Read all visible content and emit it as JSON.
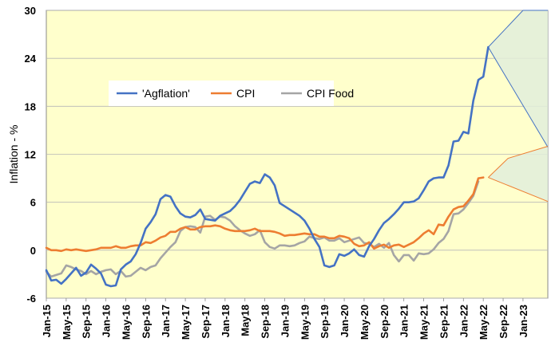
{
  "chart_data": {
    "type": "line",
    "title": "",
    "xlabel": "",
    "ylabel": "Inflation - %",
    "ylim": [
      -6,
      30
    ],
    "y_ticks": [
      "30",
      "24",
      "18",
      "12",
      "6",
      "0",
      "-6"
    ],
    "x_ticks": [
      "Jan-15",
      "May-15",
      "Sep-15",
      "Jan-16",
      "May-16",
      "Sep-16",
      "Jan-17",
      "May-17",
      "Sep-17",
      "Jan-18",
      "May18",
      "Sep-18",
      "Jan-19",
      "May-19",
      "Sep-19",
      "Jan-20",
      "May-20",
      "Sep-20",
      "Jan-21",
      "May-21",
      "Sep-21",
      "Jan-22",
      "May-22",
      "Sep-22",
      "Jan-23"
    ],
    "legend": {
      "placement": "upper-left",
      "entries": [
        "'Agflation'",
        "CPI",
        "CPI Food"
      ]
    },
    "grid": "horizontal",
    "colors": {
      "plot_bg": "#FFFFCC",
      "agflation": "#4472C4",
      "cpi": "#ED7D31",
      "cpi_food": "#A5A5A5",
      "projection_fill": "#E2EFDA"
    },
    "series": [
      {
        "name": "'Agflation'",
        "color": "#4472C4",
        "values": [
          -2.5,
          -3.8,
          -3.7,
          -4.2,
          -3.6,
          -2.9,
          -2.2,
          -3.2,
          -2.8,
          -1.8,
          -2.3,
          -2.9,
          -4.3,
          -4.5,
          -4.4,
          -2.4,
          -1.8,
          -1.4,
          -0.5,
          0.9,
          2.7,
          3.5,
          4.5,
          6.4,
          6.9,
          6.7,
          5.5,
          4.6,
          4.2,
          4.1,
          4.4,
          5.1,
          3.9,
          3.8,
          3.7,
          4.3,
          4.6,
          4.9,
          5.5,
          6.3,
          7.3,
          8.3,
          8.6,
          8.4,
          9.5,
          9.1,
          8.1,
          5.9,
          5.5,
          5.1,
          4.7,
          4.3,
          3.7,
          2.7,
          1.4,
          0.4,
          -1.9,
          -2.1,
          -1.9,
          -0.5,
          -0.7,
          -0.4,
          0.1,
          -0.6,
          -0.8,
          0.5,
          1.4,
          2.5,
          3.4,
          3.9,
          4.5,
          5.2,
          6.0,
          6.0,
          6.1,
          6.5,
          7.5,
          8.6,
          9.0,
          9.1,
          9.1,
          10.6,
          13.6,
          13.7,
          14.8,
          14.6,
          18.7,
          21.3,
          21.7,
          25.4
        ]
      },
      {
        "name": "CPI",
        "color": "#ED7D31",
        "values": [
          0.3,
          0.0,
          0.0,
          -0.1,
          0.1,
          0.0,
          0.1,
          0.0,
          -0.1,
          0.0,
          0.1,
          0.3,
          0.3,
          0.3,
          0.5,
          0.3,
          0.3,
          0.5,
          0.6,
          0.6,
          1.0,
          0.9,
          1.2,
          1.6,
          1.8,
          2.3,
          2.3,
          2.7,
          2.9,
          2.6,
          2.6,
          2.9,
          3.0,
          3.0,
          3.1,
          3.0,
          2.7,
          2.5,
          2.4,
          2.4,
          2.4,
          2.5,
          2.7,
          2.4,
          2.4,
          2.4,
          2.3,
          2.1,
          1.8,
          1.9,
          1.9,
          2.0,
          2.1,
          2.0,
          2.0,
          1.7,
          1.7,
          1.5,
          1.5,
          1.8,
          1.7,
          1.5,
          0.8,
          0.5,
          0.6,
          1.0,
          0.2,
          0.5,
          0.7,
          0.3,
          0.6,
          0.7,
          0.4,
          0.7,
          1.0,
          1.5,
          2.1,
          2.5,
          2.0,
          3.2,
          3.1,
          4.2,
          5.1,
          5.4,
          5.5,
          6.2,
          7.0,
          9.0,
          9.1
        ]
      },
      {
        "name": "CPI Food",
        "color": "#A5A5A5",
        "values": [
          -2.7,
          -3.3,
          -3.1,
          -2.9,
          -1.9,
          -2.1,
          -2.4,
          -2.6,
          -3.0,
          -2.6,
          -3.0,
          -2.7,
          -2.5,
          -2.4,
          -3.0,
          -2.6,
          -3.3,
          -3.2,
          -2.7,
          -2.2,
          -2.5,
          -2.1,
          -1.9,
          -1.0,
          -0.3,
          0.4,
          1.0,
          2.4,
          2.9,
          3.0,
          2.9,
          2.2,
          4.2,
          4.3,
          3.8,
          4.2,
          4.1,
          3.7,
          3.0,
          2.5,
          2.1,
          1.8,
          2.0,
          2.5,
          1.0,
          0.4,
          0.2,
          0.6,
          0.6,
          0.5,
          0.6,
          0.9,
          1.1,
          1.7,
          1.5,
          1.4,
          1.6,
          1.2,
          1.2,
          1.5,
          1.0,
          1.2,
          1.4,
          1.6,
          0.9,
          0.8,
          0.4,
          0.8,
          0.3,
          0.9,
          -0.6,
          -1.4,
          -0.6,
          -0.6,
          -1.3,
          -0.4,
          -0.5,
          -0.4,
          0.1,
          0.9,
          1.4,
          2.4,
          4.5,
          4.6,
          5.1,
          5.9,
          6.8,
          8.6
        ]
      }
    ],
    "projections": [
      {
        "name": "agflation-range",
        "from": {
          "x": 89,
          "y": 25.4
        },
        "upper": {
          "x": 96,
          "y": 30
        },
        "upper_end": {
          "x": 101,
          "y": 30
        },
        "lower": {
          "x": 101,
          "y": 12.9
        }
      },
      {
        "name": "cpi-range",
        "from": {
          "x": 89,
          "y": 9.1
        },
        "upper": {
          "x": 93,
          "y": 11.5
        },
        "upper_end": {
          "x": 101,
          "y": 13.0
        },
        "lower": {
          "x": 101,
          "y": 6.1
        }
      }
    ]
  }
}
